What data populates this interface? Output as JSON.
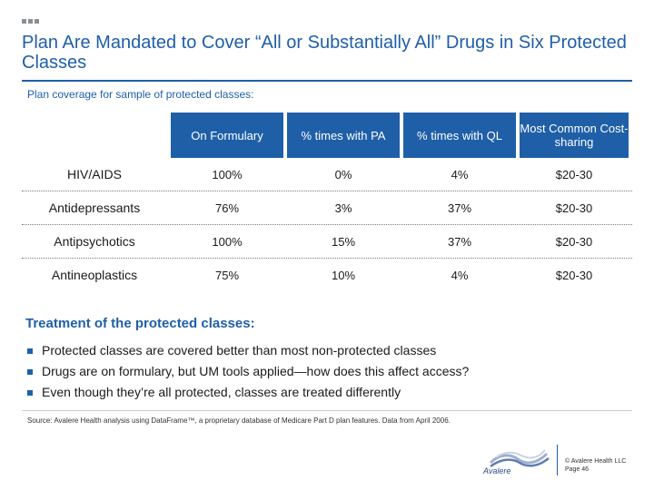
{
  "title": "Plan Are Mandated to Cover “All or Substantially All” Drugs in Six Protected Classes",
  "subtitle": "Plan coverage for sample of protected classes:",
  "table": {
    "headers": [
      "On Formulary",
      "% times with PA",
      "% times with QL",
      "Most Common Cost-sharing"
    ],
    "rows": [
      [
        "HIV/AIDS",
        "100%",
        "0%",
        "4%",
        "$20-30"
      ],
      [
        "Antidepressants",
        "76%",
        "3%",
        "37%",
        "$20-30"
      ],
      [
        "Antipsychotics",
        "100%",
        "15%",
        "37%",
        "$20-30"
      ],
      [
        "Antineoplastics",
        "75%",
        "10%",
        "4%",
        "$20-30"
      ]
    ]
  },
  "treatment": {
    "title": "Treatment of the protected classes:",
    "bullets": [
      "Protected classes are covered better than most non-protected classes",
      "Drugs are on formulary, but UM tools applied—how does this affect access?",
      "Even though they’re all protected, classes are treated differently"
    ]
  },
  "footer": {
    "source": "Source: Avalere Health analysis using DataFrame™, a proprietary database of Medicare Part D plan features. Data from April 2006.",
    "logo_text": "Avalere",
    "copyright": "© Avalere Health LLC",
    "page": "Page 46"
  },
  "colors": {
    "accent": "#1f5fa8"
  }
}
